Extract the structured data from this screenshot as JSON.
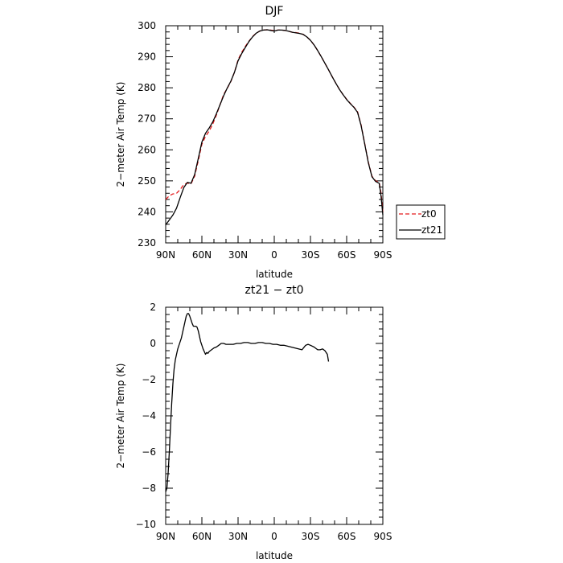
{
  "chart_data": [
    {
      "type": "line",
      "title": "DJF",
      "xlabel": "latitude",
      "ylabel": "2−meter Air Temp (K)",
      "xlim": [
        90,
        -90
      ],
      "ylim": [
        230,
        300
      ],
      "xticks": [
        90,
        60,
        30,
        0,
        -30,
        -60,
        -90
      ],
      "xtick_labels": [
        "90N",
        "60N",
        "30N",
        "0",
        "30S",
        "60S",
        "90S"
      ],
      "yticks": [
        230,
        240,
        250,
        260,
        270,
        280,
        290,
        300
      ],
      "ytick_labels": [
        "230",
        "240",
        "250",
        "260",
        "270",
        "280",
        "290",
        "300"
      ],
      "legend": {
        "placement": "right",
        "entries": [
          "zt0",
          "zt21"
        ]
      },
      "grid": false,
      "series": [
        {
          "name": "zt0",
          "color": "#e41a1c",
          "dash": "dashed",
          "points": [
            [
              90,
              244.0
            ],
            [
              87,
              245.2
            ],
            [
              84,
              245.8
            ],
            [
              81,
              246.0
            ],
            [
              78,
              247.2
            ],
            [
              75,
              248.8
            ],
            [
              72,
              249.3
            ],
            [
              69,
              249.0
            ],
            [
              66,
              251.5
            ],
            [
              63,
              256.5
            ],
            [
              60,
              261.8
            ],
            [
              57,
              264.3
            ],
            [
              54,
              266.0
            ],
            [
              51,
              268.3
            ],
            [
              48,
              271.2
            ],
            [
              45,
              274.5
            ],
            [
              42,
              277.8
            ],
            [
              39,
              279.8
            ],
            [
              36,
              282.0
            ],
            [
              33,
              285.0
            ],
            [
              30,
              289.0
            ],
            [
              27,
              291.4
            ],
            [
              24,
              293.3
            ],
            [
              21,
              295.0
            ],
            [
              18,
              296.5
            ],
            [
              15,
              297.6
            ],
            [
              12,
              298.3
            ],
            [
              9,
              298.6
            ],
            [
              6,
              298.7
            ],
            [
              3,
              298.6
            ],
            [
              0,
              298.4
            ],
            [
              -3,
              298.6
            ],
            [
              -6,
              298.6
            ],
            [
              -9,
              298.5
            ],
            [
              -12,
              298.2
            ],
            [
              -15,
              297.9
            ],
            [
              -18,
              297.8
            ],
            [
              -21,
              297.6
            ],
            [
              -24,
              297.2
            ],
            [
              -27,
              296.4
            ],
            [
              -30,
              295.3
            ],
            [
              -33,
              293.8
            ],
            [
              -36,
              292.0
            ],
            [
              -39,
              290.0
            ],
            [
              -42,
              287.9
            ],
            [
              -45,
              285.8
            ],
            [
              -48,
              283.6
            ],
            [
              -51,
              281.5
            ],
            [
              -54,
              279.5
            ],
            [
              -57,
              277.8
            ],
            [
              -60,
              276.3
            ],
            [
              -63,
              275.0
            ],
            [
              -66,
              273.8
            ],
            [
              -69,
              272.3
            ],
            [
              -72,
              268.0
            ],
            [
              -75,
              262.0
            ],
            [
              -78,
              256.0
            ],
            [
              -81,
              251.5
            ],
            [
              -84,
              250.0
            ],
            [
              -87,
              249.5
            ],
            [
              -88.5,
              246.0
            ],
            [
              -90,
              240.0
            ]
          ]
        },
        {
          "name": "zt21",
          "color": "#000000",
          "dash": "solid",
          "points": [
            [
              90,
              235.8
            ],
            [
              87,
              237.4
            ],
            [
              84,
              239.0
            ],
            [
              81,
              241.2
            ],
            [
              78,
              244.6
            ],
            [
              75,
              247.8
            ],
            [
              72,
              249.5
            ],
            [
              69,
              249.2
            ],
            [
              66,
              252.0
            ],
            [
              63,
              257.2
            ],
            [
              60,
              262.5
            ],
            [
              57,
              265.3
            ],
            [
              54,
              267.0
            ],
            [
              51,
              269.0
            ],
            [
              48,
              271.6
            ],
            [
              45,
              274.5
            ],
            [
              42,
              277.4
            ],
            [
              39,
              279.9
            ],
            [
              36,
              282.1
            ],
            [
              33,
              285.0
            ],
            [
              30,
              288.7
            ],
            [
              27,
              291.0
            ],
            [
              24,
              293.0
            ],
            [
              21,
              294.9
            ],
            [
              18,
              296.4
            ],
            [
              15,
              297.6
            ],
            [
              12,
              298.3
            ],
            [
              9,
              298.6
            ],
            [
              6,
              298.7
            ],
            [
              3,
              298.5
            ],
            [
              0,
              298.3
            ],
            [
              -3,
              298.6
            ],
            [
              -6,
              298.6
            ],
            [
              -9,
              298.5
            ],
            [
              -12,
              298.2
            ],
            [
              -15,
              297.9
            ],
            [
              -18,
              297.7
            ],
            [
              -21,
              297.5
            ],
            [
              -24,
              297.2
            ],
            [
              -27,
              296.4
            ],
            [
              -30,
              295.3
            ],
            [
              -33,
              293.8
            ],
            [
              -36,
              292.0
            ],
            [
              -39,
              290.0
            ],
            [
              -42,
              287.9
            ],
            [
              -45,
              285.8
            ],
            [
              -48,
              283.6
            ],
            [
              -51,
              281.5
            ],
            [
              -54,
              279.5
            ],
            [
              -57,
              277.8
            ],
            [
              -60,
              276.2
            ],
            [
              -63,
              274.9
            ],
            [
              -66,
              273.7
            ],
            [
              -69,
              272.1
            ],
            [
              -72,
              267.8
            ],
            [
              -75,
              261.8
            ],
            [
              -78,
              255.8
            ],
            [
              -81,
              251.3
            ],
            [
              -84,
              249.8
            ],
            [
              -87,
              249.2
            ],
            [
              -88.5,
              245.0
            ],
            [
              -90,
              239.0
            ]
          ]
        }
      ]
    },
    {
      "type": "line",
      "title": "zt21 − zt0",
      "xlabel": "latitude",
      "ylabel": "2−meter Air Temp (K)",
      "xlim": [
        90,
        -90
      ],
      "ylim": [
        -10,
        2
      ],
      "xticks": [
        90,
        60,
        30,
        0,
        -30,
        -60,
        -90
      ],
      "xtick_labels": [
        "90N",
        "60N",
        "30N",
        "0",
        "30S",
        "60S",
        "90S"
      ],
      "yticks": [
        -10,
        -8,
        -6,
        -4,
        -2,
        0,
        2
      ],
      "ytick_labels": [
        "−10",
        "−8",
        "−6",
        "−4",
        "−2",
        "0",
        "2"
      ],
      "grid": false,
      "series": [
        {
          "color": "#000000",
          "dash": "solid",
          "points": [
            [
              90,
              -8.2
            ],
            [
              89,
              -8.0
            ],
            [
              88,
              -7.2
            ],
            [
              87,
              -6.0
            ],
            [
              86,
              -4.6
            ],
            [
              85,
              -3.3
            ],
            [
              84,
              -2.2
            ],
            [
              83,
              -1.4
            ],
            [
              82,
              -0.9
            ],
            [
              81,
              -0.6
            ],
            [
              80,
              -0.3
            ],
            [
              79,
              -0.1
            ],
            [
              78,
              0.1
            ],
            [
              77,
              0.3
            ],
            [
              76,
              0.6
            ],
            [
              75,
              0.9
            ],
            [
              74,
              1.2
            ],
            [
              73,
              1.5
            ],
            [
              72,
              1.65
            ],
            [
              71,
              1.65
            ],
            [
              70,
              1.5
            ],
            [
              69,
              1.3
            ],
            [
              68,
              1.1
            ],
            [
              67,
              0.95
            ],
            [
              66,
              0.95
            ],
            [
              65,
              0.95
            ],
            [
              64,
              0.9
            ],
            [
              63,
              0.7
            ],
            [
              62,
              0.4
            ],
            [
              61,
              0.1
            ],
            [
              60,
              -0.1
            ],
            [
              59,
              -0.3
            ],
            [
              58,
              -0.45
            ],
            [
              57,
              -0.6
            ],
            [
              56,
              -0.5
            ],
            [
              55,
              -0.55
            ],
            [
              54,
              -0.45
            ],
            [
              52,
              -0.35
            ],
            [
              50,
              -0.25
            ],
            [
              48,
              -0.2
            ],
            [
              46,
              -0.1
            ],
            [
              44,
              0.0
            ],
            [
              42,
              0.0
            ],
            [
              40,
              -0.05
            ],
            [
              37,
              -0.05
            ],
            [
              34,
              -0.05
            ],
            [
              31,
              0.0
            ],
            [
              28,
              0.0
            ],
            [
              25,
              0.05
            ],
            [
              22,
              0.05
            ],
            [
              19,
              0.0
            ],
            [
              16,
              0.0
            ],
            [
              13,
              0.05
            ],
            [
              10,
              0.05
            ],
            [
              7,
              0.0
            ],
            [
              4,
              0.0
            ],
            [
              1,
              -0.05
            ],
            [
              -2,
              -0.05
            ],
            [
              -5,
              -0.1
            ],
            [
              -8,
              -0.1
            ],
            [
              -11,
              -0.15
            ],
            [
              -14,
              -0.2
            ],
            [
              -17,
              -0.25
            ],
            [
              -20,
              -0.3
            ],
            [
              -23,
              -0.35
            ],
            [
              -26,
              -0.1
            ],
            [
              -28,
              -0.05
            ],
            [
              -30,
              -0.1
            ],
            [
              -33,
              -0.2
            ],
            [
              -36,
              -0.35
            ],
            [
              -38,
              -0.35
            ],
            [
              -40,
              -0.3
            ],
            [
              -42,
              -0.4
            ],
            [
              -44,
              -0.6
            ],
            [
              -45,
              -1.0
            ]
          ]
        }
      ]
    }
  ]
}
